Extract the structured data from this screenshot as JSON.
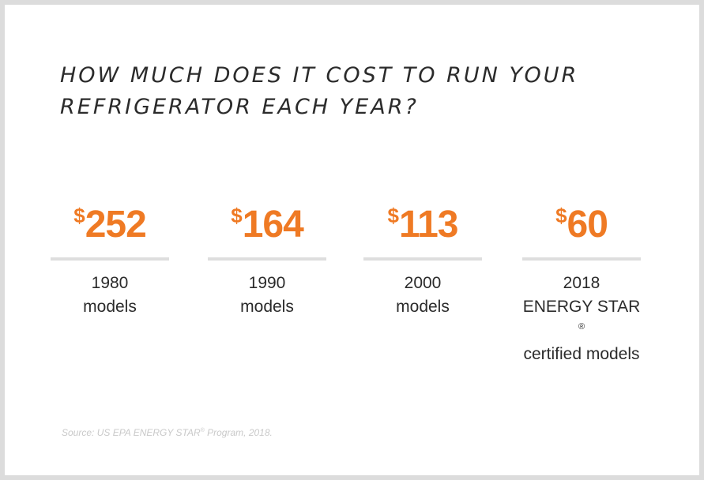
{
  "chart_data": {
    "type": "table",
    "title_lines": [
      "HOW MUCH DOES IT COST TO RUN YOUR",
      "REFRIGERATOR EACH YEAR?"
    ],
    "categories": [
      "1980 models",
      "1990 models",
      "2000 models",
      "2018 ENERGY STAR® certified models"
    ],
    "values": [
      252,
      164,
      113,
      60
    ],
    "currency_symbol": "$",
    "accent_color": "#ef7a24",
    "items": [
      {
        "amount": "252",
        "label_lines": [
          "1980",
          "models"
        ]
      },
      {
        "amount": "164",
        "label_lines": [
          "1990",
          "models"
        ]
      },
      {
        "amount": "113",
        "label_lines": [
          "2000",
          "models"
        ]
      },
      {
        "amount": "60",
        "label_lines": [
          "2018",
          "ENERGY STAR",
          "certified models"
        ],
        "registered_mark": "®"
      }
    ],
    "source": {
      "text_before": "Source: US EPA ENERGY STAR",
      "mark": "®",
      "text_after": " Program, 2018."
    }
  }
}
